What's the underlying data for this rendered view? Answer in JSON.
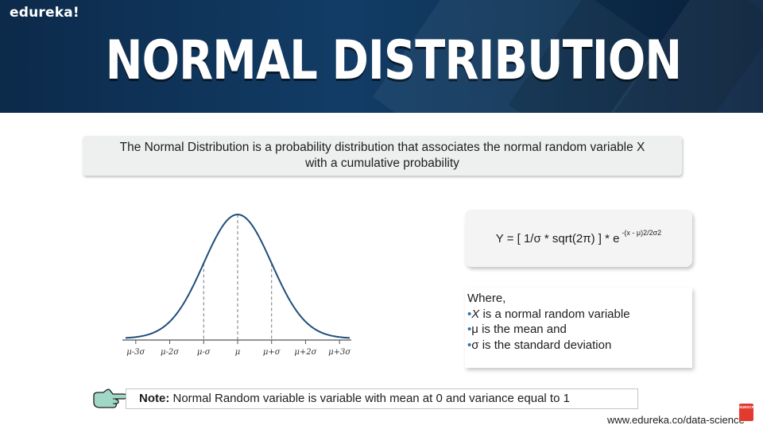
{
  "header": {
    "logo": "edureka!",
    "title": "NORMAL DISTRIBUTION"
  },
  "definition": {
    "line1": "The Normal Distribution is a probability distribution that associates the normal random variable X",
    "line2": "with a cumulative probability"
  },
  "chart_data": {
    "type": "line",
    "title": "",
    "xlabel": "",
    "ylabel": "",
    "tick_labels": [
      "μ-3σ",
      "μ-2σ",
      "μ-σ",
      "μ",
      "μ+σ",
      "μ+2σ",
      "μ+3σ"
    ],
    "x_ticks": [
      -3,
      -2,
      -1,
      0,
      1,
      2,
      3
    ],
    "xlim": [
      -3.3,
      3.3
    ],
    "series": [
      {
        "curve": "standard normal density",
        "x_range": [
          -3.3,
          3.3
        ]
      }
    ],
    "dashed_guides_at": [
      -1,
      0,
      1
    ],
    "curve_color": "#1f4e79",
    "grid": false
  },
  "formula": {
    "text": "Y = [ 1/σ * sqrt(2π) ] * e",
    "exponent": "-(x - μ)2/2σ2"
  },
  "where": {
    "heading": "Where,",
    "items": [
      {
        "symbol": "X",
        "text": " is a normal random variable"
      },
      {
        "symbol": "μ",
        "text": " is the mean and"
      },
      {
        "symbol": "σ",
        "text": " is the standard deviation"
      }
    ],
    "bullet": "•"
  },
  "note": {
    "label": "Note:",
    "text": " Normal Random variable is variable with mean at 0 and variance equal to 1"
  },
  "footer": {
    "url": "www.edureka.co/data-science",
    "subscribe_badge": "SUBSCRIBE"
  },
  "colors": {
    "header_bg": "#123c66",
    "accent_bullet": "#2f6fb2",
    "hand_fill": "#9fd8c6"
  }
}
